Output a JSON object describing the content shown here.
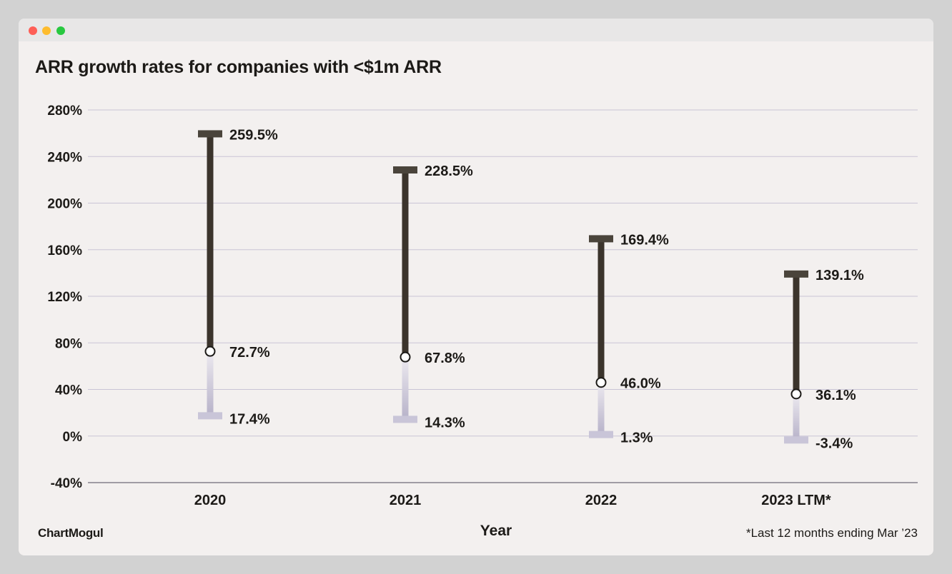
{
  "window": {
    "buttons": [
      "close",
      "minimize",
      "maximize"
    ]
  },
  "brand": "ChartMogul",
  "footnote": "*Last 12 months ending Mar ’23",
  "colors": {
    "background": "#f3f0ef",
    "bar_upper": "#3b342c",
    "bar_lower": "#c9c5d8",
    "grid": "#c9c4d6",
    "text": "#1c1a17"
  },
  "chart_data": {
    "type": "range-bar",
    "title": "ARR growth rates for companies with <$1m ARR",
    "xlabel": "Year",
    "ylabel": "",
    "ylim": [
      -40,
      280
    ],
    "yticks": [
      280,
      240,
      200,
      160,
      120,
      80,
      40,
      0,
      -40
    ],
    "ytick_labels": [
      "280%",
      "240%",
      "200%",
      "160%",
      "120%",
      "80%",
      "40%",
      "0%",
      "-40%"
    ],
    "categories": [
      "2020",
      "2021",
      "2022",
      "2023 LTM*"
    ],
    "series": [
      {
        "name": "top",
        "values": [
          259.5,
          228.5,
          169.4,
          139.1
        ],
        "labels": [
          "259.5%",
          "228.5%",
          "169.4%",
          "139.1%"
        ]
      },
      {
        "name": "median",
        "values": [
          72.7,
          67.8,
          46.0,
          36.1
        ],
        "labels": [
          "72.7%",
          "67.8%",
          "46.0%",
          "36.1%"
        ]
      },
      {
        "name": "bottom",
        "values": [
          17.4,
          14.3,
          1.3,
          -3.4
        ],
        "labels": [
          "17.4%",
          "14.3%",
          "1.3%",
          "-3.4%"
        ]
      }
    ],
    "grid": true
  }
}
